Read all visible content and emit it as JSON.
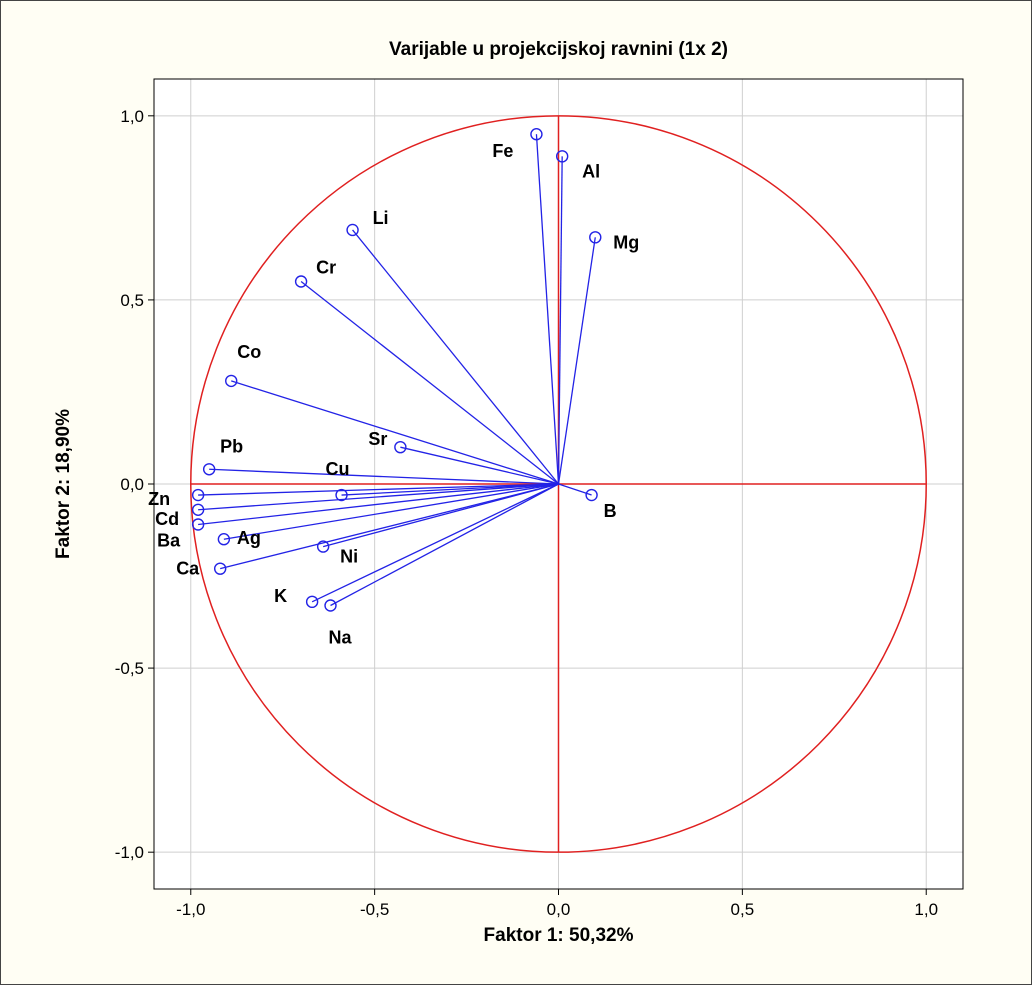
{
  "chart_data": {
    "type": "scatter",
    "title": "Varijable u projekcijskoj ravnini (1x 2)",
    "xlabel": "Faktor 1: 50,32%",
    "ylabel": "Faktor 2: 18,90%",
    "xlim": [
      -1.1,
      1.1
    ],
    "ylim": [
      -1.1,
      1.1
    ],
    "xticks": [
      -1.0,
      -0.5,
      0.0,
      0.5,
      1.0
    ],
    "yticks": [
      -1.0,
      -0.5,
      0.0,
      0.5,
      1.0
    ],
    "xtick_labels": [
      "-1,0",
      "-0,5",
      "0,0",
      "0,5",
      "1,0"
    ],
    "ytick_labels": [
      "-1,0",
      "-0,5",
      "0,0",
      "0,5",
      "1,0"
    ],
    "grid": true,
    "unit_circle": true,
    "points": [
      {
        "label": "Fe",
        "x": -0.06,
        "y": 0.95
      },
      {
        "label": "Al",
        "x": 0.01,
        "y": 0.89
      },
      {
        "label": "Mg",
        "x": 0.1,
        "y": 0.67
      },
      {
        "label": "Li",
        "x": -0.56,
        "y": 0.69
      },
      {
        "label": "Cr",
        "x": -0.7,
        "y": 0.55
      },
      {
        "label": "Co",
        "x": -0.89,
        "y": 0.28
      },
      {
        "label": "Sr",
        "x": -0.43,
        "y": 0.1
      },
      {
        "label": "Pb",
        "x": -0.95,
        "y": 0.04
      },
      {
        "label": "Zn",
        "x": -0.98,
        "y": -0.03
      },
      {
        "label": "Cu",
        "x": -0.59,
        "y": -0.03
      },
      {
        "label": "Cd",
        "x": -0.98,
        "y": -0.07
      },
      {
        "label": "Ba",
        "x": -0.98,
        "y": -0.11
      },
      {
        "label": "Ag",
        "x": -0.91,
        "y": -0.15
      },
      {
        "label": "Ni",
        "x": -0.64,
        "y": -0.17
      },
      {
        "label": "Ca",
        "x": -0.92,
        "y": -0.23
      },
      {
        "label": "K",
        "x": -0.67,
        "y": -0.32
      },
      {
        "label": "Na",
        "x": -0.62,
        "y": -0.33
      },
      {
        "label": "B",
        "x": 0.09,
        "y": -0.03
      }
    ],
    "colors": {
      "vectors": "#2323e6",
      "circle": "#e02020",
      "axes_lines": "#e02020",
      "grid": "#cfcfcf",
      "frame_bg": "#fffef4",
      "plot_bg": "#ffffff"
    }
  }
}
